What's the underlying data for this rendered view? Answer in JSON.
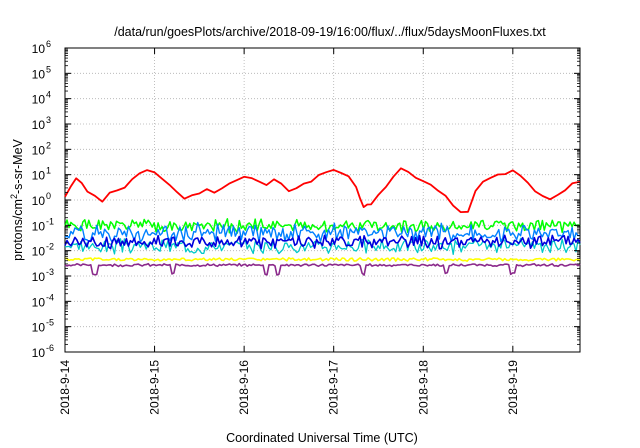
{
  "chart_data": {
    "type": "line",
    "title": "/data/run/goesPlots/archive/2018-09-19/16:00/flux/../flux/5daysMoonFluxes.txt",
    "xlabel": "Coordinated Universal Time (UTC)",
    "ylabel": {
      "pre": "protons/cm",
      "sup": "2",
      "post": "-s-sr-MeV"
    },
    "yscale": "log",
    "grid": true,
    "legend": "none",
    "xlim": [
      "2018-09-14T00:00",
      "2018-09-19T18:00"
    ],
    "ylim": [
      1e-06,
      1000000.0
    ],
    "x_ticks": [
      {
        "value": "2018-09-14T00:00",
        "label": "2018-9-14"
      },
      {
        "value": "2018-09-15T00:00",
        "label": "2018-9-15"
      },
      {
        "value": "2018-09-16T00:00",
        "label": "2018-9-16"
      },
      {
        "value": "2018-09-17T00:00",
        "label": "2018-9-17"
      },
      {
        "value": "2018-09-18T00:00",
        "label": "2018-9-18"
      },
      {
        "value": "2018-09-19T00:00",
        "label": "2018-9-19"
      }
    ],
    "y_ticks": [
      {
        "value": 1e-06,
        "base": "10",
        "exp": "-6"
      },
      {
        "value": 1e-05,
        "base": "10",
        "exp": "-5"
      },
      {
        "value": 0.0001,
        "base": "10",
        "exp": "-4"
      },
      {
        "value": 0.001,
        "base": "10",
        "exp": "-3"
      },
      {
        "value": 0.01,
        "base": "10",
        "exp": "-2"
      },
      {
        "value": 0.1,
        "base": "10",
        "exp": "-1"
      },
      {
        "value": 1,
        "base": "10",
        "exp": "0"
      },
      {
        "value": 10,
        "base": "10",
        "exp": "1"
      },
      {
        "value": 100,
        "base": "10",
        "exp": "2"
      },
      {
        "value": 1000,
        "base": "10",
        "exp": "3"
      },
      {
        "value": 10000,
        "base": "10",
        "exp": "4"
      },
      {
        "value": 100000,
        "base": "10",
        "exp": "5"
      },
      {
        "value": 1000000,
        "base": "10",
        "exp": "6"
      }
    ],
    "series": [
      {
        "color": "#ff0000",
        "width": 1.8,
        "x": [
          "2018-09-14T00:00",
          "2018-09-14T01:30",
          "2018-09-14T03:00",
          "2018-09-14T04:30",
          "2018-09-14T06:00",
          "2018-09-14T08:00",
          "2018-09-14T10:00",
          "2018-09-14T12:00",
          "2018-09-14T14:00",
          "2018-09-14T16:00",
          "2018-09-14T18:00",
          "2018-09-14T20:00",
          "2018-09-14T22:00",
          "2018-09-15T00:00",
          "2018-09-15T02:00",
          "2018-09-15T04:00",
          "2018-09-15T06:00",
          "2018-09-15T08:00",
          "2018-09-15T10:00",
          "2018-09-15T12:00",
          "2018-09-15T14:00",
          "2018-09-15T16:00",
          "2018-09-15T18:00",
          "2018-09-15T20:00",
          "2018-09-15T22:00",
          "2018-09-16T00:00",
          "2018-09-16T02:00",
          "2018-09-16T04:00",
          "2018-09-16T06:00",
          "2018-09-16T08:00",
          "2018-09-16T10:00",
          "2018-09-16T12:00",
          "2018-09-16T14:00",
          "2018-09-16T16:00",
          "2018-09-16T18:00",
          "2018-09-16T20:00",
          "2018-09-16T22:00",
          "2018-09-17T00:00",
          "2018-09-17T02:00",
          "2018-09-17T04:00",
          "2018-09-17T06:00",
          "2018-09-17T07:00",
          "2018-09-17T08:00",
          "2018-09-17T09:00",
          "2018-09-17T10:00",
          "2018-09-17T12:00",
          "2018-09-17T14:00",
          "2018-09-17T16:00",
          "2018-09-17T18:00",
          "2018-09-17T20:00",
          "2018-09-17T22:00",
          "2018-09-18T00:00",
          "2018-09-18T02:00",
          "2018-09-18T04:00",
          "2018-09-18T06:00",
          "2018-09-18T08:00",
          "2018-09-18T10:00",
          "2018-09-18T12:00",
          "2018-09-18T14:00",
          "2018-09-18T16:00",
          "2018-09-18T18:00",
          "2018-09-18T20:00",
          "2018-09-18T22:00",
          "2018-09-19T00:00",
          "2018-09-19T02:00",
          "2018-09-19T04:00",
          "2018-09-19T06:00",
          "2018-09-19T08:00",
          "2018-09-19T10:00",
          "2018-09-19T12:00",
          "2018-09-19T14:00",
          "2018-09-19T16:00",
          "2018-09-19T18:00"
        ],
        "y": [
          1.2,
          3.5,
          8,
          5,
          2,
          1.6,
          0.9,
          1.8,
          2.5,
          3,
          6,
          10,
          15,
          13,
          7,
          4,
          2,
          1.2,
          1.4,
          2,
          2.5,
          2.2,
          3,
          4.5,
          6,
          8,
          7,
          5,
          4,
          6,
          5,
          2.5,
          3,
          4,
          6,
          9,
          12,
          14,
          12,
          8,
          3,
          1.2,
          0.5,
          0.7,
          0.6,
          1.5,
          3,
          8,
          18,
          12,
          8,
          6,
          4,
          2.5,
          1.5,
          0.6,
          0.3,
          0.35,
          2.5,
          5,
          7,
          9,
          12,
          14,
          10,
          5,
          2,
          1.5,
          1.2,
          1.6,
          2.2,
          4.5,
          6
        ]
      },
      {
        "color": "#00ff00",
        "width": 1.5,
        "x": [
          "2018-09-14T00:00",
          "2018-09-19T18:00"
        ],
        "y": [
          0.095,
          0.095
        ],
        "noise": 0.2,
        "seed": 1
      },
      {
        "color": "#0080ff",
        "width": 1.4,
        "x": [
          "2018-09-14T00:00",
          "2018-09-19T18:00"
        ],
        "y": [
          0.05,
          0.05
        ],
        "noise": 0.28,
        "seed": 2
      },
      {
        "color": "#00c8c8",
        "width": 1.3,
        "x": [
          "2018-09-14T00:00",
          "2018-09-19T18:00"
        ],
        "y": [
          0.015,
          0.015
        ],
        "noise": 0.22,
        "seed": 3
      },
      {
        "color": "#0000dd",
        "width": 1.6,
        "x": [
          "2018-09-14T00:00",
          "2018-09-19T18:00"
        ],
        "y": [
          0.022,
          0.022
        ],
        "noise": 0.2,
        "seed": 4
      },
      {
        "color": "#ffff00",
        "width": 1.6,
        "x": [
          "2018-09-14T00:00",
          "2018-09-19T18:00"
        ],
        "y": [
          0.0045,
          0.0045
        ],
        "noise": 0.05,
        "seed": 5
      },
      {
        "color": "#8b2a8b",
        "width": 1.6,
        "x": [
          "2018-09-14T00:00",
          "2018-09-19T18:00"
        ],
        "y": [
          0.0027,
          0.0027
        ],
        "noise": 0.04,
        "seed": 6,
        "dips": [
          "2018-09-14T08:00",
          "2018-09-15T05:00",
          "2018-09-16T06:00",
          "2018-09-16T09:00",
          "2018-09-17T08:00",
          "2018-09-18T06:00",
          "2018-09-19T00:00"
        ]
      }
    ]
  }
}
